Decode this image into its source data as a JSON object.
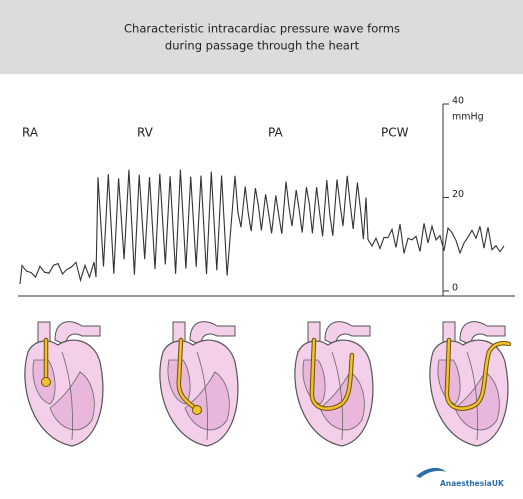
{
  "header": {
    "title": [
      "Characteristic intracardiac pressure wave forms",
      "during passage through the heart"
    ]
  },
  "chambers": [
    "RA",
    "RV",
    "PA",
    "PCW"
  ],
  "axis": {
    "ticks": [
      0,
      20,
      40
    ],
    "unit": "mmHg"
  },
  "logo": "AnaesthesiaUK"
}
